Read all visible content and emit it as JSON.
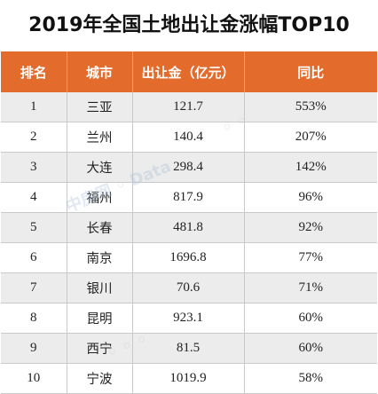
{
  "title": "2019年全国土地出让金涨幅TOP10",
  "colors": {
    "header_bg": "#e36c2c",
    "header_text": "#ffffff",
    "stripe": "#ececec"
  },
  "chart_data": {
    "type": "table",
    "title": "2019年全国土地出让金涨幅TOP10",
    "columns": [
      "排名",
      "城市",
      "出让金（亿元）",
      "同比"
    ],
    "rows": [
      {
        "rank": "1",
        "city": "三亚",
        "amount": "121.7",
        "yoy": "553%"
      },
      {
        "rank": "2",
        "city": "兰州",
        "amount": "140.4",
        "yoy": "207%"
      },
      {
        "rank": "3",
        "city": "大连",
        "amount": "298.4",
        "yoy": "142%"
      },
      {
        "rank": "4",
        "city": "福州",
        "amount": "817.9",
        "yoy": "96%"
      },
      {
        "rank": "5",
        "city": "长春",
        "amount": "481.8",
        "yoy": "92%"
      },
      {
        "rank": "6",
        "city": "南京",
        "amount": "1696.8",
        "yoy": "77%"
      },
      {
        "rank": "7",
        "city": "银川",
        "amount": "70.6",
        "yoy": "71%"
      },
      {
        "rank": "8",
        "city": "昆明",
        "amount": "923.1",
        "yoy": "60%"
      },
      {
        "rank": "9",
        "city": "西宁",
        "amount": "81.5",
        "yoy": "60%"
      },
      {
        "rank": "10",
        "city": "宁波",
        "amount": "1019.9",
        "yoy": "58%"
      }
    ]
  }
}
